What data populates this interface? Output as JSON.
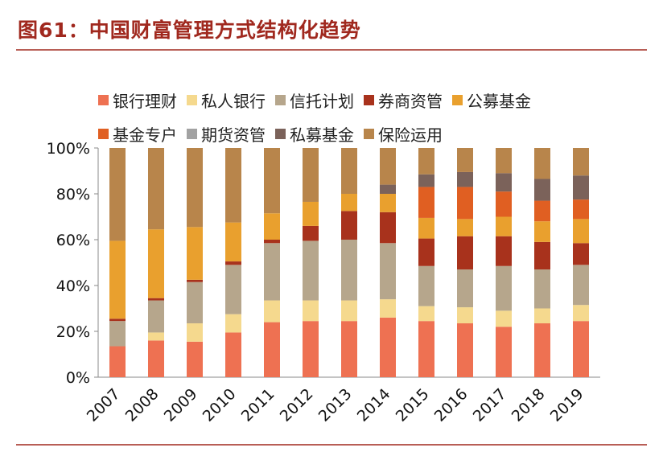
{
  "chart_data": {
    "type": "stacked-bar",
    "title": "图61：中国财富管理方式结构化趋势",
    "categories": [
      "2007",
      "2008",
      "2009",
      "2010",
      "2011",
      "2012",
      "2013",
      "2014",
      "2015",
      "2016",
      "2017",
      "2018",
      "2019"
    ],
    "series": [
      {
        "name": "银行理财",
        "color": "#ee7152",
        "values": [
          13.5,
          16,
          15.5,
          19.5,
          24,
          24.5,
          24.5,
          26,
          24.5,
          23.5,
          22,
          23.5,
          24.5
        ]
      },
      {
        "name": "私人银行",
        "color": "#f5d98e",
        "values": [
          0,
          3.5,
          8,
          8,
          9.5,
          9,
          9,
          8,
          6.5,
          7,
          7,
          6.5,
          7
        ]
      },
      {
        "name": "信托计划",
        "color": "#b6a68c",
        "values": [
          11,
          14,
          18,
          21.5,
          25,
          26,
          26.5,
          24.5,
          17.5,
          16.5,
          19.5,
          17,
          17.5
        ]
      },
      {
        "name": "券商资管",
        "color": "#a8321c",
        "values": [
          1,
          1,
          1,
          1.5,
          1.5,
          6.5,
          12.5,
          13.5,
          12,
          14.5,
          13,
          12,
          9.5
        ]
      },
      {
        "name": "公募基金",
        "color": "#e9a02e",
        "values": [
          34,
          30,
          23,
          17,
          11.5,
          10.5,
          7.5,
          8,
          9,
          7.5,
          8.5,
          9,
          10.5
        ]
      },
      {
        "name": "基金专户",
        "color": "#e05f22",
        "values": [
          0,
          0,
          0,
          0,
          0,
          0,
          0,
          0,
          13.5,
          14,
          11,
          9,
          8.5
        ]
      },
      {
        "name": "期货资管",
        "color": "#a2a2a2",
        "values": [
          0,
          0,
          0,
          0,
          0,
          0,
          0,
          0,
          0,
          0,
          0,
          0,
          0
        ]
      },
      {
        "name": "私募基金",
        "color": "#7b625a",
        "values": [
          0,
          0,
          0,
          0,
          0,
          0,
          0,
          4,
          5.5,
          6.5,
          8,
          9.5,
          10.5
        ]
      },
      {
        "name": "保险运用",
        "color": "#b8854b",
        "values": [
          40.5,
          35.5,
          34.5,
          32.5,
          28.5,
          23.5,
          20,
          16,
          11.5,
          10.5,
          11,
          13.5,
          12
        ]
      }
    ],
    "ylim": [
      0,
      100
    ],
    "yticks": [
      {
        "value": 0,
        "label": "0%"
      },
      {
        "value": 20,
        "label": "20%"
      },
      {
        "value": 40,
        "label": "40%"
      },
      {
        "value": 60,
        "label": "60%"
      },
      {
        "value": 80,
        "label": "80%"
      },
      {
        "value": 100,
        "label": "100%"
      }
    ]
  }
}
